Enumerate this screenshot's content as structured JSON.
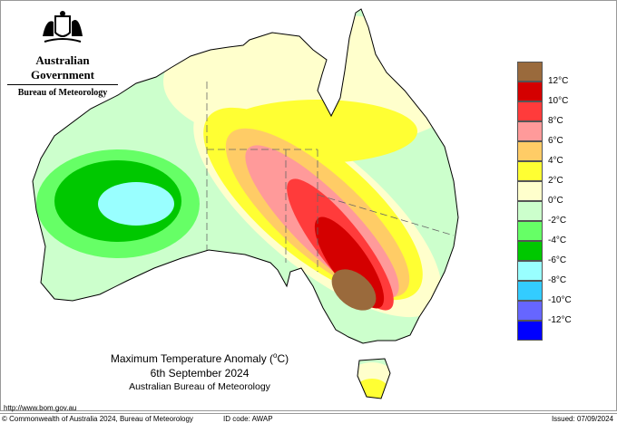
{
  "header": {
    "government": "Australian Government",
    "bureau": "Bureau of Meteorology",
    "crest_icon": "coat-of-arms-icon"
  },
  "map": {
    "title": "Maximum Temperature Anomaly (",
    "title_unit": "o",
    "title_unit_suffix": "C)",
    "date": "6th September 2024",
    "source": "Australian Bureau of Meteorology"
  },
  "legend": {
    "colors": [
      "#9a6a3c",
      "#d40000",
      "#ff3b3b",
      "#ff9a9a",
      "#ffcc66",
      "#ffff33",
      "#ffffcc",
      "#ccffcc",
      "#66ff66",
      "#00c800",
      "#99ffff",
      "#33ccff",
      "#6666ff",
      "#0000ff"
    ],
    "labels": [
      "12°C",
      "10°C",
      "8°C",
      "6°C",
      "4°C",
      "2°C",
      "0°C",
      "-2°C",
      "-4°C",
      "-6°C",
      "-8°C",
      "-10°C",
      "-12°C"
    ]
  },
  "footer": {
    "url": "http://www.bom.gov.au",
    "copyright": "© Commonwealth of Australia 2024, Bureau of Meteorology",
    "id_code": "ID code: AWAP",
    "issued": "Issued: 07/09/2024"
  }
}
